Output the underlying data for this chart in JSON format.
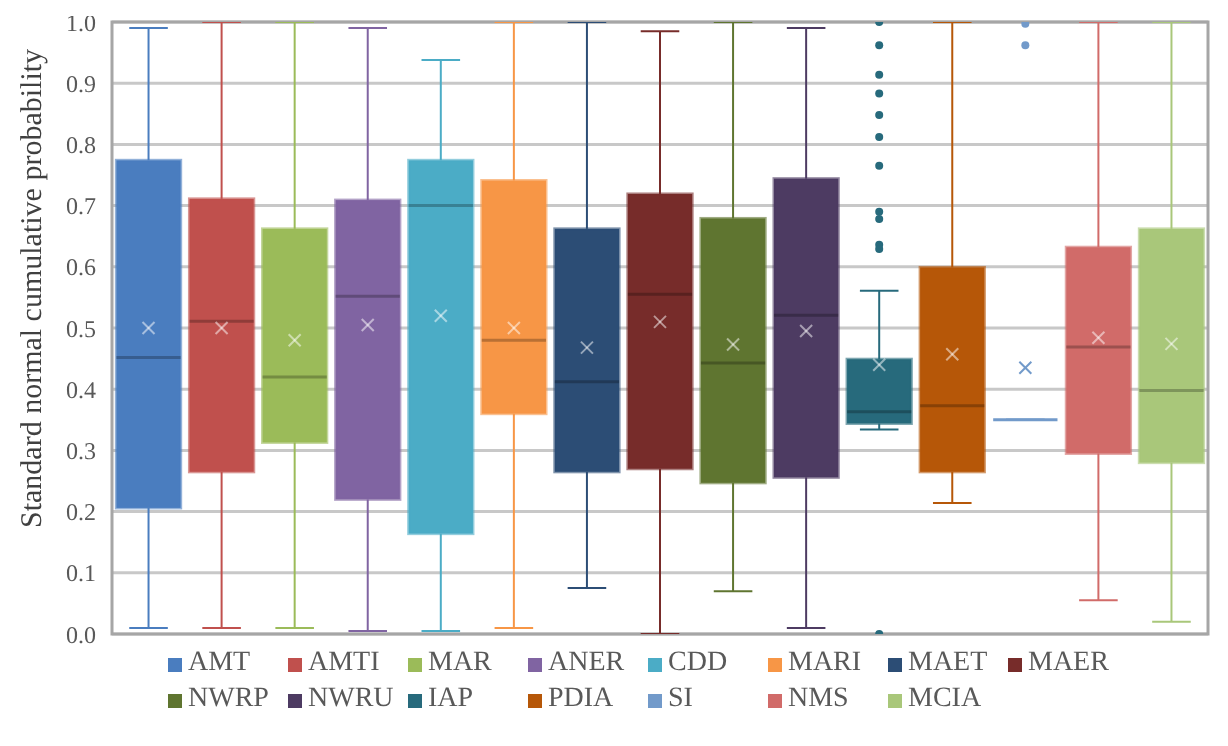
{
  "chart_data": {
    "type": "box",
    "ylabel": "Standard normal cumulative probability",
    "categories": [
      null
    ],
    "ylim": [
      0,
      1
    ],
    "yticks": [
      {
        "value": 0,
        "label": "0.0"
      },
      0.1,
      0.2,
      0.3,
      0.4,
      0.5,
      0.6,
      0.7,
      0.8,
      0.9,
      {
        "value": 1,
        "label": "1.0"
      }
    ],
    "grid": "y",
    "legend": "bottom",
    "tick_labels": "y",
    "series": [
      {
        "name": "AMT",
        "color": "#4a7dbf",
        "boxes": [
          {
            "low": 0.01,
            "q1": 0.206,
            "median": 0.452,
            "q3": 0.774,
            "high": 0.99,
            "mean": 0.5
          }
        ]
      },
      {
        "name": "AMTI",
        "color": "#c0504d",
        "boxes": [
          {
            "low": 0.01,
            "q1": 0.265,
            "median": 0.511,
            "q3": 0.711,
            "high": 1.0,
            "mean": 0.5
          }
        ]
      },
      {
        "name": "MAR",
        "color": "#9bbb59",
        "boxes": [
          {
            "low": 0.01,
            "q1": 0.313,
            "median": 0.42,
            "q3": 0.662,
            "high": 1.0,
            "mean": 0.48
          }
        ]
      },
      {
        "name": "ANER",
        "color": "#8064a2",
        "boxes": [
          {
            "low": 0.005,
            "q1": 0.22,
            "median": 0.552,
            "q3": 0.709,
            "high": 0.99,
            "mean": 0.505
          }
        ]
      },
      {
        "name": "CDD",
        "color": "#4bacc6",
        "boxes": [
          {
            "low": 0.005,
            "q1": 0.164,
            "median": 0.7,
            "q3": 0.774,
            "high": 0.938,
            "mean": 0.52
          }
        ]
      },
      {
        "name": "MARI",
        "color": "#f79646",
        "boxes": [
          {
            "low": 0.01,
            "q1": 0.36,
            "median": 0.48,
            "q3": 0.741,
            "high": 1.0,
            "mean": 0.5
          }
        ]
      },
      {
        "name": "MAET",
        "color": "#2c4d75",
        "boxes": [
          {
            "low": 0.075,
            "q1": 0.265,
            "median": 0.412,
            "q3": 0.662,
            "high": 1.0,
            "mean": 0.468
          }
        ]
      },
      {
        "name": "MAER",
        "color": "#772c2a",
        "boxes": [
          {
            "low": 0.0,
            "q1": 0.27,
            "median": 0.555,
            "q3": 0.719,
            "high": 0.985,
            "mean": 0.51
          }
        ]
      },
      {
        "name": "NWRP",
        "color": "#5f7530",
        "boxes": [
          {
            "low": 0.07,
            "q1": 0.247,
            "median": 0.443,
            "q3": 0.679,
            "high": 1.0,
            "mean": 0.473
          }
        ]
      },
      {
        "name": "NWRU",
        "color": "#4d3b62",
        "boxes": [
          {
            "low": 0.01,
            "q1": 0.256,
            "median": 0.521,
            "q3": 0.744,
            "high": 0.99,
            "mean": 0.495
          }
        ]
      },
      {
        "name": "IAP",
        "color": "#276a7c",
        "boxes": [
          {
            "low": 0.334,
            "q1": 0.344,
            "median": 0.363,
            "q3": 0.449,
            "high": 0.561,
            "mean": 0.44,
            "outliers": [
              1.0,
              0.962,
              0.914,
              0.883,
              0.848,
              0.812,
              0.765,
              0.69,
              0.678,
              0.636,
              0.629,
              0.0
            ]
          }
        ]
      },
      {
        "name": "PDIA",
        "color": "#b65708",
        "boxes": [
          {
            "low": 0.214,
            "q1": 0.265,
            "median": 0.373,
            "q3": 0.599,
            "high": 1.0,
            "mean": 0.457
          }
        ]
      },
      {
        "name": "SI",
        "color": "#729aca",
        "boxes": [
          {
            "low": 0.35,
            "q1": 0.35,
            "median": 0.35,
            "q3": 0.35,
            "high": 0.35,
            "mean": 0.435,
            "outliers": [
              0.997,
              0.962
            ]
          }
        ]
      },
      {
        "name": "NMS",
        "color": "#d16b69",
        "boxes": [
          {
            "low": 0.055,
            "q1": 0.295,
            "median": 0.469,
            "q3": 0.632,
            "high": 1.0,
            "mean": 0.484
          }
        ]
      },
      {
        "name": "MCIA",
        "color": "#a9c77a",
        "boxes": [
          {
            "low": 0.02,
            "q1": 0.28,
            "median": 0.398,
            "q3": 0.662,
            "high": 1.0,
            "mean": 0.474
          }
        ]
      }
    ]
  }
}
